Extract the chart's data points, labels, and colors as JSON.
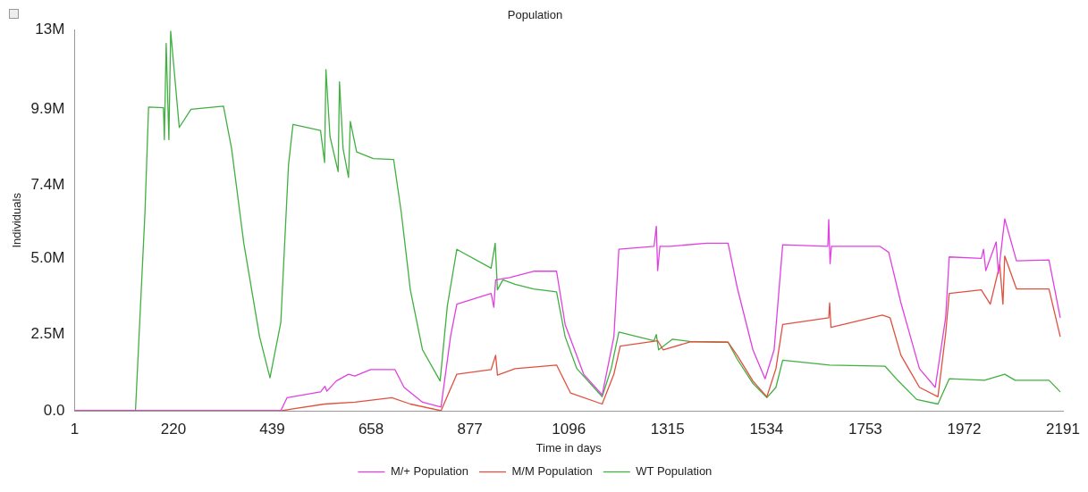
{
  "chart_data": {
    "type": "line",
    "title": "Population",
    "xlabel": "Time in days",
    "ylabel": "Individuals",
    "xlim": [
      1,
      2191
    ],
    "xticks": [
      1,
      220,
      439,
      658,
      877,
      1096,
      1315,
      1534,
      1753,
      1972,
      2191
    ],
    "ylim": [
      0,
      12500000
    ],
    "yticks": [
      {
        "value": 0,
        "label": "0.0"
      },
      {
        "value": 2500000,
        "label": "2.5M"
      },
      {
        "value": 5000000,
        "label": "5.0M"
      },
      {
        "value": 7400000,
        "label": "7.4M"
      },
      {
        "value": 9900000,
        "label": "9.9M"
      },
      {
        "value": 12500000,
        "label": "13M"
      }
    ],
    "grid": false,
    "legend": "bottom",
    "series": [
      {
        "name": "M/+ Population",
        "color": "#e040e0",
        "x": [
          1,
          458,
          472,
          546,
          556,
          560,
          581,
          608,
          622,
          657,
          711,
          731,
          772,
          813,
          834,
          848,
          924,
          930,
          934,
          965,
          1018,
          1069,
          1088,
          1129,
          1170,
          1196,
          1207,
          1285,
          1290,
          1293,
          1298,
          1320,
          1401,
          1449,
          1469,
          1504,
          1531,
          1551,
          1570,
          1670,
          1672,
          1675,
          1678,
          1785,
          1805,
          1832,
          1873,
          1908,
          1931,
          1939,
          2010,
          2015,
          2020,
          2043,
          2048,
          2062,
          2088,
          2160,
          2185
        ],
        "values": [
          0,
          0,
          430000,
          620000,
          800000,
          640000,
          980000,
          1200000,
          1140000,
          1350000,
          1350000,
          770000,
          280000,
          120000,
          2430000,
          3500000,
          3850000,
          3400000,
          4300000,
          4370000,
          4580000,
          4580000,
          2830000,
          1200000,
          520000,
          2430000,
          5300000,
          5400000,
          6060000,
          4600000,
          5400000,
          5400000,
          5500000,
          5500000,
          4060000,
          2000000,
          1050000,
          2000000,
          5450000,
          5400000,
          6280000,
          4830000,
          5400000,
          5400000,
          5200000,
          3540000,
          1380000,
          770000,
          3050000,
          5050000,
          5000000,
          5300000,
          4600000,
          5540000,
          4500000,
          6300000,
          4920000,
          4950000,
          3050000
        ]
      },
      {
        "name": "M/M Population",
        "color": "#e05040",
        "x": [
          1,
          460,
          485,
          555,
          622,
          704,
          745,
          813,
          848,
          924,
          934,
          938,
          977,
          1069,
          1100,
          1170,
          1196,
          1210,
          1293,
          1305,
          1367,
          1449,
          1469,
          1504,
          1535,
          1555,
          1570,
          1672,
          1674,
          1677,
          1791,
          1808,
          1832,
          1873,
          1914,
          1931,
          1939,
          2010,
          2030,
          2051,
          2058,
          2062,
          2088,
          2160,
          2185
        ],
        "values": [
          0,
          0,
          60000,
          220000,
          280000,
          430000,
          220000,
          0,
          1200000,
          1350000,
          1820000,
          1170000,
          1380000,
          1500000,
          580000,
          220000,
          1200000,
          2120000,
          2300000,
          2000000,
          2270000,
          2250000,
          1820000,
          980000,
          460000,
          1380000,
          2830000,
          3050000,
          3540000,
          2740000,
          3140000,
          3050000,
          1820000,
          770000,
          460000,
          2520000,
          3850000,
          3970000,
          3500000,
          4800000,
          3500000,
          5080000,
          4000000,
          4000000,
          2430000
        ]
      },
      {
        "name": "WT Population",
        "color": "#40b040",
        "x": [
          1,
          136,
          157,
          165,
          198,
          200,
          204,
          210,
          214,
          233,
          259,
          331,
          349,
          376,
          411,
          434,
          458,
          475,
          485,
          546,
          555,
          558,
          567,
          585,
          588,
          596,
          608,
          612,
          626,
          663,
          708,
          725,
          745,
          772,
          811,
          827,
          848,
          924,
          933,
          938,
          950,
          977,
          1018,
          1069,
          1088,
          1114,
          1170,
          1190,
          1207,
          1285,
          1290,
          1295,
          1326,
          1367,
          1449,
          1469,
          1504,
          1535,
          1555,
          1570,
          1674,
          1797,
          1826,
          1867,
          1914,
          1939,
          2017,
          2062,
          2085,
          2160,
          2185
        ],
        "values": [
          0,
          0,
          6500000,
          9970000,
          9950000,
          8900000,
          12060000,
          8900000,
          12460000,
          9300000,
          9900000,
          10000000,
          8600000,
          5500000,
          2430000,
          1080000,
          2900000,
          8060000,
          9400000,
          9200000,
          8150000,
          11200000,
          9000000,
          7850000,
          10800000,
          8600000,
          7660000,
          9500000,
          8500000,
          8280000,
          8250000,
          6500000,
          3970000,
          2000000,
          980000,
          3450000,
          5300000,
          4680000,
          5500000,
          3970000,
          4300000,
          4150000,
          4000000,
          3900000,
          2430000,
          1380000,
          460000,
          1380000,
          2580000,
          2300000,
          2500000,
          2000000,
          2350000,
          2270000,
          2250000,
          1700000,
          900000,
          430000,
          770000,
          1660000,
          1500000,
          1460000,
          980000,
          370000,
          220000,
          1050000,
          1000000,
          1200000,
          1000000,
          1000000,
          620000
        ]
      }
    ]
  }
}
